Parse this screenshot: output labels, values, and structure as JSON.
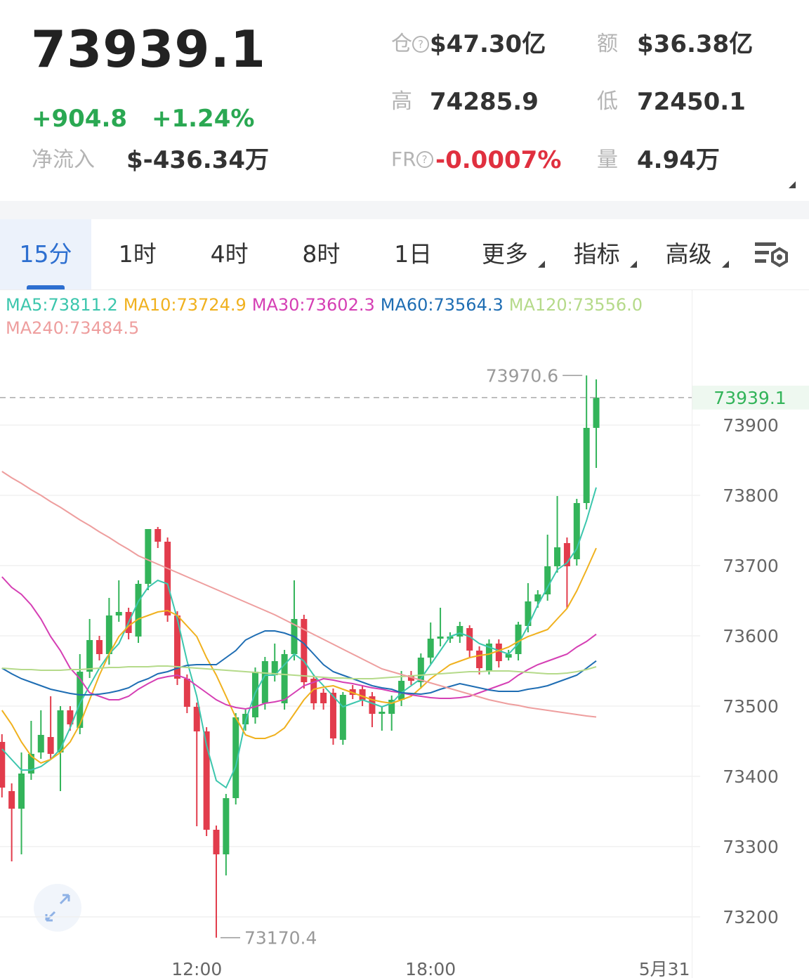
{
  "header": {
    "price": "73939.1",
    "change": "+904.8",
    "change_pct": "+1.24%",
    "net_inflow_label": "净流入",
    "net_inflow": "$-436.34万",
    "stats": [
      {
        "label": "仓",
        "value": "$47.30亿"
      },
      {
        "label": "额",
        "value": "$36.38亿"
      },
      {
        "label": "高",
        "value": "74285.9"
      },
      {
        "label": "低",
        "value": "72450.1"
      },
      {
        "label": "FR",
        "value": "-0.0007%"
      },
      {
        "label": "量",
        "value": "4.94万"
      }
    ]
  },
  "tabs": [
    "15分",
    "1时",
    "4时",
    "8时",
    "1日",
    "更多",
    "指标",
    "高级"
  ],
  "active_tab": 0,
  "chart_data": {
    "type": "candlestick",
    "up_color": "#33b45a",
    "down_color": "#e23c4c",
    "open": [
      73449,
      73379,
      73354,
      73404,
      73434,
      73456,
      73434,
      73494,
      73469,
      73549,
      73594,
      73574,
      73629,
      73634,
      73599,
      73674,
      73752,
      73734,
      73629,
      73539,
      73499,
      73464,
      73324,
      73289,
      73369,
      73474,
      73484,
      73504,
      73544,
      73504,
      73574,
      73624,
      73539,
      73519,
      73519,
      73452,
      73524,
      73524,
      73514,
      73489,
      73489,
      73509,
      73544,
      73534,
      73569,
      73596,
      73596,
      73599,
      73611,
      73579,
      73549,
      73589,
      73569,
      73574,
      73614,
      73649,
      73659,
      73699,
      73732,
      73709,
      73789,
      73896
    ],
    "high": [
      73460,
      73390,
      73434,
      73479,
      73494,
      73514,
      73500,
      73500,
      73574,
      73624,
      73600,
      73654,
      73679,
      73640,
      73679,
      73752,
      73755,
      73740,
      73635,
      73545,
      73505,
      73470,
      73330,
      73375,
      73490,
      73495,
      73555,
      73570,
      73589,
      73580,
      73679,
      73630,
      73545,
      73525,
      73525,
      73520,
      73530,
      73530,
      73520,
      73500,
      73515,
      73550,
      73550,
      73575,
      73619,
      73640,
      73605,
      73620,
      73615,
      73585,
      73595,
      73595,
      73580,
      73620,
      73675,
      73665,
      73744,
      73799,
      73740,
      73795,
      73970.6,
      73965
    ],
    "low": [
      73370,
      73279,
      73289,
      73395,
      73425,
      73425,
      73379,
      73465,
      73460,
      73540,
      73565,
      73559,
      73620,
      73595,
      73590,
      73665,
      73725,
      73620,
      73530,
      73490,
      73329,
      73315,
      73170.4,
      73259,
      73360,
      73465,
      73475,
      73495,
      73535,
      73495,
      73565,
      73525,
      73495,
      73495,
      73445,
      73445,
      73510,
      73500,
      73470,
      73465,
      73465,
      73500,
      73530,
      73525,
      73560,
      73585,
      73590,
      73590,
      73570,
      73545,
      73545,
      73555,
      73565,
      73565,
      73605,
      73640,
      73650,
      73690,
      73639,
      73700,
      73780,
      73839
    ],
    "close": [
      73384,
      73354,
      73404,
      73432,
      73459,
      73432,
      73494,
      73474,
      73549,
      73594,
      73574,
      73629,
      73634,
      73604,
      73674,
      73752,
      73734,
      73629,
      73539,
      73499,
      73464,
      73324,
      73289,
      73369,
      73484,
      73489,
      73549,
      73564,
      73564,
      73574,
      73624,
      73534,
      73504,
      73504,
      73454,
      73516,
      73516,
      73509,
      73489,
      73492,
      73509,
      73536,
      73536,
      73569,
      73596,
      73599,
      73599,
      73614,
      73579,
      73554,
      73589,
      73564,
      73574,
      73616,
      73649,
      73659,
      73699,
      73726,
      73699,
      73789,
      73896,
      73939.1
    ],
    "moving_averages": [
      {
        "name": "MA5:73811.2",
        "color": "#3cc6ad",
        "values": [
          73439,
          73424,
          73409,
          73409,
          73414,
          73424,
          73439,
          73469,
          73504,
          73529,
          73554,
          73574,
          73589,
          73619,
          73649,
          73669,
          73679,
          73674,
          73624,
          73564,
          73514,
          73444,
          73394,
          73384,
          73414,
          73479,
          73519,
          73544,
          73544,
          73559,
          73574,
          73564,
          73544,
          73529,
          73514,
          73499,
          73504,
          73509,
          73504,
          73499,
          73504,
          73519,
          73529,
          73539,
          73559,
          73579,
          73599,
          73604,
          73599,
          73589,
          73584,
          73579,
          73574,
          73589,
          73614,
          73644,
          73669,
          73694,
          73704,
          73724,
          73764,
          73811.2
        ]
      },
      {
        "name": "MA10:73724.9",
        "color": "#f0b11e",
        "values": [
          73494,
          73474,
          73449,
          73429,
          73419,
          73424,
          73434,
          73449,
          73474,
          73509,
          73544,
          73574,
          73599,
          73614,
          73624,
          73629,
          73634,
          73636,
          73629,
          73614,
          73599,
          73569,
          73544,
          73514,
          73484,
          73459,
          73454,
          73454,
          73459,
          73469,
          73489,
          73509,
          73524,
          73527,
          73529,
          73524,
          73519,
          73514,
          73509,
          73506,
          73504,
          73509,
          73514,
          73526,
          73539,
          73549,
          73559,
          73564,
          73569,
          73572,
          73574,
          73579,
          73584,
          73592,
          73599,
          73604,
          73609,
          73624,
          73639,
          73664,
          73694,
          73724.9
        ]
      },
      {
        "name": "MA30:73602.3",
        "color": "#d53fb4",
        "values": [
          73684,
          73669,
          73659,
          73644,
          73624,
          73599,
          73579,
          73554,
          73539,
          73519,
          73514,
          73509,
          73509,
          73514,
          73524,
          73532,
          73539,
          73542,
          73544,
          73539,
          73529,
          73519,
          73509,
          73502,
          73498,
          73496,
          73499,
          73504,
          73506,
          73509,
          73519,
          73529,
          73534,
          73539,
          73537,
          73534,
          73532,
          73529,
          73526,
          73524,
          73521,
          73519,
          73516,
          73514,
          73512,
          73511,
          73511,
          73512,
          73514,
          73519,
          73524,
          73529,
          73534,
          73544,
          73552,
          73559,
          73564,
          73569,
          73574,
          73584,
          73592,
          73602.3
        ]
      },
      {
        "name": "MA60:73564.3",
        "color": "#1e6db3",
        "values": [
          73554,
          73546,
          73539,
          73534,
          73529,
          73524,
          73521,
          73518,
          73516,
          73516,
          73517,
          73519,
          73522,
          73526,
          73534,
          73539,
          73546,
          73549,
          73554,
          73558,
          73559,
          73559,
          73559,
          73569,
          73579,
          73594,
          73601,
          73607,
          73607,
          73604,
          73599,
          73589,
          73574,
          73559,
          73549,
          73544,
          73539,
          73534,
          73529,
          73526,
          73524,
          73519,
          73518,
          73517,
          73519,
          73524,
          73528,
          73532,
          73529,
          73526,
          73523,
          73521,
          73521,
          73521,
          73524,
          73526,
          73529,
          73534,
          73539,
          73544,
          73554,
          73564.3
        ]
      },
      {
        "name": "MA120:73556.0",
        "color": "#b5da8a",
        "values": [
          73554,
          73553,
          73552,
          73552,
          73551,
          73551,
          73551,
          73552,
          73552,
          73553,
          73554,
          73555,
          73555,
          73556,
          73556,
          73556,
          73557,
          73557,
          73556,
          73555,
          73554,
          73553,
          73552,
          73551,
          73550,
          73549,
          73548,
          73547,
          73546,
          73545,
          73544,
          73543,
          73542,
          73541,
          73540,
          73540,
          73539,
          73539,
          73539,
          73540,
          73541,
          73542,
          73543,
          73544,
          73545,
          73546,
          73547,
          73548,
          73549,
          73549,
          73550,
          73550,
          73550,
          73549,
          73548,
          73547,
          73546,
          73546,
          73547,
          73549,
          73552,
          73556.0
        ]
      },
      {
        "name": "MA240:73484.5",
        "color": "#ee9e9e",
        "values": [
          73834,
          73825,
          73817,
          73808,
          73800,
          73791,
          73783,
          73774,
          73765,
          73757,
          73748,
          73740,
          73731,
          73723,
          73714,
          73708,
          73702,
          73696,
          73690,
          73684,
          73678,
          73672,
          73666,
          73660,
          73654,
          73648,
          73642,
          73636,
          73630,
          73623,
          73616,
          73609,
          73602,
          73595,
          73588,
          73581,
          73574,
          73567,
          73560,
          73553,
          73549,
          73545,
          73541,
          73537,
          73533,
          73529,
          73525,
          73521,
          73517,
          73513,
          73509,
          73506,
          73503,
          73501,
          73498,
          73496,
          73494,
          73492,
          73490,
          73488,
          73486,
          73484.5
        ]
      }
    ],
    "ylim": [
      73148,
      74024
    ],
    "yticks": [
      73200,
      73300,
      73400,
      73500,
      73600,
      73700,
      73800,
      73900
    ],
    "xlim": [
      -0.2,
      70.8
    ],
    "xticks": [
      {
        "value": 20,
        "label": "12:00"
      },
      {
        "value": 44,
        "label": "18:00"
      },
      {
        "value": 68,
        "label": "5月31"
      }
    ],
    "grid": true
  }
}
